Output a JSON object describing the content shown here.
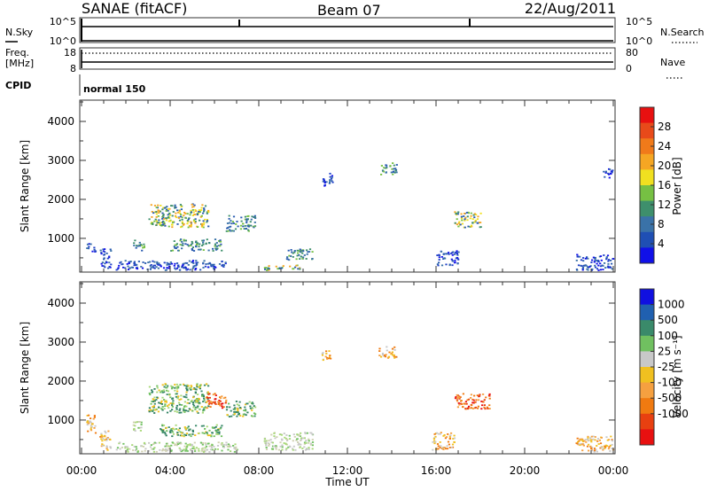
{
  "header": {
    "station": "SANAE (fitACF)",
    "beam": "Beam 07",
    "date": "22/Aug/2011"
  },
  "nsky_panel": {
    "left_label": "N.Sky",
    "left_ticks": [
      "10^5",
      "10^0"
    ],
    "right_ticks": [
      "10^5",
      "10^0"
    ],
    "right_label": "N.Search"
  },
  "freq_panel": {
    "left_label_line1": "Freq.",
    "left_label_line2": "[MHz]",
    "left_ticks": [
      "18",
      "8"
    ],
    "right_ticks": [
      "80",
      "0"
    ],
    "right_label": "Nave"
  },
  "cpid_panel": {
    "label": "CPID",
    "value": "normal 150"
  },
  "time_axis": {
    "ticks": [
      "00:00",
      "04:00",
      "08:00",
      "12:00",
      "16:00",
      "20:00",
      "00:00"
    ],
    "label": "Time UT"
  },
  "chart_data": [
    {
      "type": "heatmap",
      "name": "power",
      "ylabel": "Slant Range [km]",
      "yticks": [
        "1000",
        "2000",
        "3000",
        "4000"
      ],
      "ylim": [
        180,
        4500
      ],
      "xlim_hours": [
        0,
        24
      ],
      "colorbar": {
        "label": "Power [dB]",
        "ticks": [
          "4",
          "8",
          "12",
          "16",
          "20",
          "24",
          "28"
        ],
        "range": [
          0,
          32
        ],
        "colors": [
          "#1010e8",
          "#1f4fb4",
          "#3a72a8",
          "#3e8f6c",
          "#76c043",
          "#f0e020",
          "#f5a623",
          "#f07a1a",
          "#e84a1a",
          "#e81010"
        ]
      },
      "clusters": [
        {
          "t0": 0.2,
          "t1": 0.6,
          "r0": 650,
          "r1": 900,
          "level": "low"
        },
        {
          "t0": 0.8,
          "t1": 1.3,
          "r0": 250,
          "r1": 750,
          "level": "low"
        },
        {
          "t0": 2.3,
          "t1": 2.8,
          "r0": 700,
          "r1": 1000,
          "level": "mid"
        },
        {
          "t0": 3.0,
          "t1": 5.7,
          "r0": 1300,
          "r1": 1900,
          "level": "high"
        },
        {
          "t0": 4.0,
          "t1": 6.3,
          "r0": 700,
          "r1": 1000,
          "level": "mid"
        },
        {
          "t0": 1.5,
          "t1": 6.5,
          "r0": 200,
          "r1": 450,
          "level": "low"
        },
        {
          "t0": 6.5,
          "t1": 7.8,
          "r0": 1200,
          "r1": 1600,
          "level": "mid"
        },
        {
          "t0": 9.2,
          "t1": 10.4,
          "r0": 450,
          "r1": 750,
          "level": "mid"
        },
        {
          "t0": 8.2,
          "t1": 10.0,
          "r0": 200,
          "r1": 330,
          "level": "high"
        },
        {
          "t0": 10.8,
          "t1": 11.3,
          "r0": 2350,
          "r1": 2700,
          "level": "low"
        },
        {
          "t0": 13.4,
          "t1": 14.2,
          "r0": 2650,
          "r1": 2950,
          "level": "mid"
        },
        {
          "t0": 16.8,
          "t1": 18.0,
          "r0": 1300,
          "r1": 1700,
          "level": "high"
        },
        {
          "t0": 16.0,
          "t1": 17.0,
          "r0": 300,
          "r1": 700,
          "level": "low"
        },
        {
          "t0": 22.3,
          "t1": 24.0,
          "r0": 200,
          "r1": 600,
          "level": "low"
        },
        {
          "t0": 23.5,
          "t1": 24.0,
          "r0": 2550,
          "r1": 2800,
          "level": "low"
        }
      ]
    },
    {
      "type": "heatmap",
      "name": "velocity",
      "ylabel": "Slant Range [km]",
      "yticks": [
        "1000",
        "2000",
        "3000",
        "4000"
      ],
      "ylim": [
        180,
        4500
      ],
      "xlim_hours": [
        0,
        24
      ],
      "colorbar": {
        "label": "Velocity [m s⁻¹]",
        "ticks": [
          "1000",
          "500",
          "100",
          "25",
          "-25",
          "-100",
          "-500",
          "-1000"
        ],
        "colors": [
          "#1010e0",
          "#2060b0",
          "#3a8a6a",
          "#70c060",
          "#c8c8c8",
          "#f0c020",
          "#f5a040",
          "#f07a10",
          "#e84010",
          "#e81010"
        ]
      },
      "clusters": [
        {
          "t0": 0.2,
          "t1": 0.6,
          "r0": 650,
          "r1": 1200,
          "level": "neg"
        },
        {
          "t0": 0.8,
          "t1": 1.3,
          "r0": 250,
          "r1": 750,
          "level": "neg"
        },
        {
          "t0": 2.3,
          "t1": 2.8,
          "r0": 700,
          "r1": 1000,
          "level": "zero"
        },
        {
          "t0": 3.0,
          "t1": 5.7,
          "r0": 1200,
          "r1": 1950,
          "level": "pos"
        },
        {
          "t0": 5.6,
          "t1": 6.5,
          "r0": 1300,
          "r1": 1700,
          "level": "strongneg"
        },
        {
          "t0": 3.5,
          "t1": 6.3,
          "r0": 600,
          "r1": 900,
          "level": "pos"
        },
        {
          "t0": 1.5,
          "t1": 7.0,
          "r0": 200,
          "r1": 450,
          "level": "zero"
        },
        {
          "t0": 6.5,
          "t1": 7.8,
          "r0": 1100,
          "r1": 1500,
          "level": "pos"
        },
        {
          "t0": 8.2,
          "t1": 10.4,
          "r0": 250,
          "r1": 700,
          "level": "zero"
        },
        {
          "t0": 10.8,
          "t1": 11.3,
          "r0": 2550,
          "r1": 2800,
          "level": "neg"
        },
        {
          "t0": 13.4,
          "t1": 14.2,
          "r0": 2600,
          "r1": 2900,
          "level": "neg"
        },
        {
          "t0": 16.8,
          "t1": 18.4,
          "r0": 1300,
          "r1": 1700,
          "level": "strongneg"
        },
        {
          "t0": 15.8,
          "t1": 16.8,
          "r0": 250,
          "r1": 700,
          "level": "neg"
        },
        {
          "t0": 22.3,
          "t1": 24.0,
          "r0": 200,
          "r1": 600,
          "level": "neg"
        }
      ]
    }
  ]
}
